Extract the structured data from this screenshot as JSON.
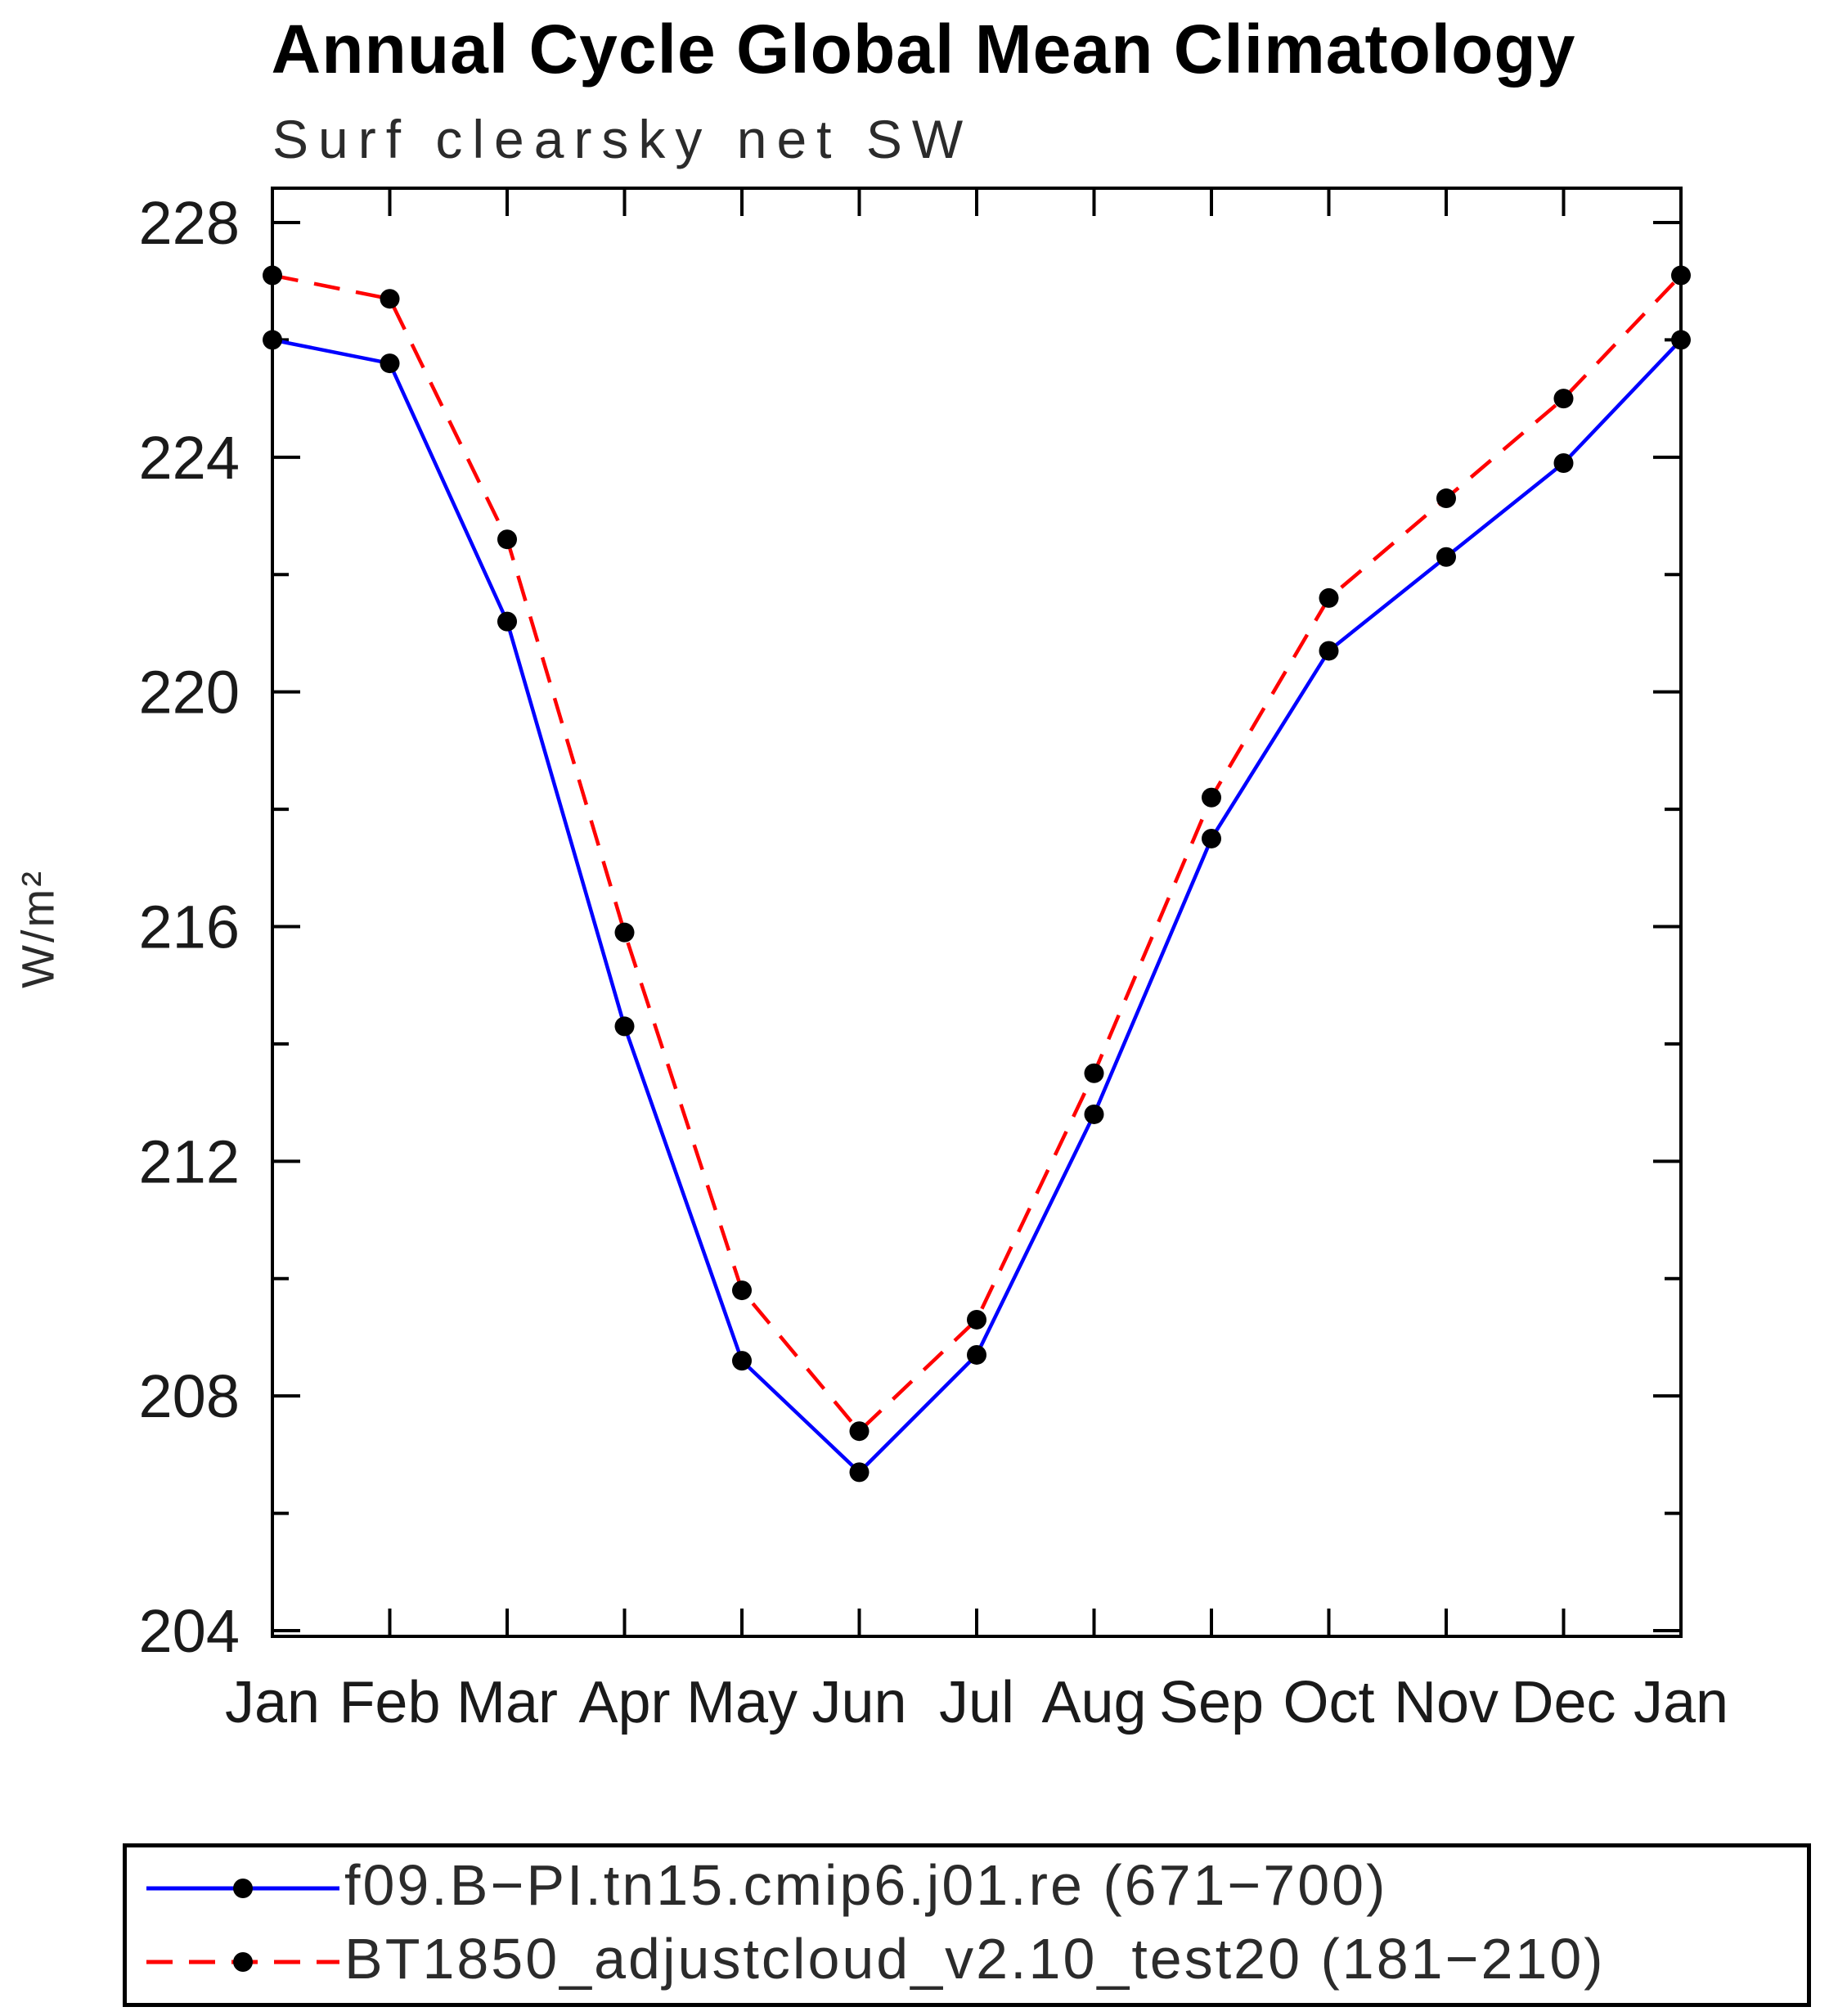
{
  "chart_data": {
    "type": "line",
    "title": "Annual Cycle Global Mean Climatology",
    "subtitle": "Surf clearsky net SW",
    "ylabel": "W/m²",
    "xlabel": "",
    "ylim": [
      204,
      228
    ],
    "yticks_major": [
      204,
      208,
      212,
      216,
      220,
      224,
      228
    ],
    "ytick_labels": [
      "204",
      "208",
      "212",
      "216",
      "220",
      "224",
      "228"
    ],
    "yticks_minor": [
      206,
      210,
      214,
      218,
      222,
      226
    ],
    "grid": "off",
    "legend_position": "bottom",
    "frame_color": "#000000",
    "tick_label_color": "#1a1a1a",
    "marker_color": "#000000",
    "x_categories": [
      "Jan",
      "Feb",
      "Mar",
      "Apr",
      "May",
      "Jun",
      "Jul",
      "Aug",
      "Sep",
      "Oct",
      "Nov",
      "Dec",
      "Jan"
    ],
    "series": [
      {
        "name": "f09.B−PI.tn15.cmip6.j01.re (671−700)",
        "color": "#0000ff",
        "style": "solid",
        "values": [
          226.0,
          225.6,
          221.2,
          214.3,
          208.6,
          206.7,
          208.7,
          212.8,
          217.5,
          220.7,
          222.3,
          223.9,
          226.0
        ]
      },
      {
        "name": "BT1850_adjustcloud_v2.10_test20 (181−210)",
        "color": "#ff0000",
        "style": "dashed",
        "values": [
          227.1,
          226.7,
          222.6,
          215.9,
          209.8,
          207.4,
          209.3,
          213.5,
          218.2,
          221.6,
          223.3,
          225.0,
          227.1
        ]
      }
    ]
  }
}
